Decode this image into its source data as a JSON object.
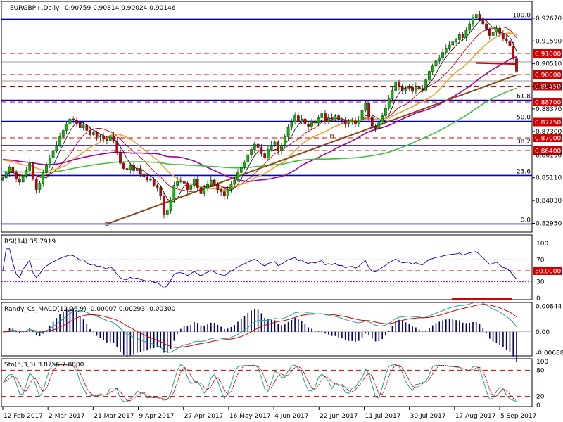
{
  "colors": {
    "bull": "#00c000",
    "bear": "#d00000",
    "blue": "#0000c8",
    "red": "#d00000",
    "ma_fast": "#000000",
    "ma_20": "#d00000",
    "ma_50": "#f0a030",
    "ma_100": "#a000a0",
    "ma_200": "#40c040",
    "trend": "#8b4513",
    "rsi": "#0000c8",
    "macd_sig": "#d00000",
    "macd_main": "#20a0a0",
    "sto_main": "#20a0a0",
    "sto_sig": "#d00000",
    "grid": "#808080"
  },
  "chart_data": [
    {
      "type": "candlestick",
      "title": "EURGBP+,Daily",
      "ohlc_text": "0.90759 0.90814 0.90024 0.90146",
      "ylim": [
        0.826,
        0.934
      ],
      "ticks": [
        "0.92670",
        "0.91590",
        "0.90510",
        "0.89450",
        "0.88370",
        "0.87300",
        "0.86190",
        "0.85110",
        "0.84030",
        "0.82950"
      ],
      "tick_values": [
        0.9267,
        0.9159,
        0.9051,
        0.8945,
        0.8837,
        0.873,
        0.8619,
        0.8511,
        0.8403,
        0.8295
      ],
      "highlighted_levels": [
        {
          "value": 0.91,
          "label": "0.91000"
        },
        {
          "value": 0.9,
          "label": "0.90000"
        },
        {
          "value": 0.8945,
          "label": "0.89450"
        },
        {
          "value": 0.887,
          "label": "0.88700"
        },
        {
          "value": 0.8775,
          "label": "0.87750"
        },
        {
          "value": 0.87,
          "label": "0.87000"
        },
        {
          "value": 0.864,
          "label": "0.86400"
        }
      ],
      "fib_levels": [
        {
          "label": "100.0",
          "value": 0.9262
        },
        {
          "label": "61.8",
          "value": 0.8878
        },
        {
          "label": "50.0",
          "value": 0.8778
        },
        {
          "label": "38.2",
          "value": 0.8663
        },
        {
          "label": "23.6",
          "value": 0.8522
        },
        {
          "label": "0.0",
          "value": 0.8292
        }
      ],
      "close": [
        0.851,
        0.8535,
        0.856,
        0.8535,
        0.8505,
        0.849,
        0.852,
        0.8545,
        0.858,
        0.8505,
        0.8455,
        0.8485,
        0.8535,
        0.857,
        0.8605,
        0.864,
        0.8665,
        0.8705,
        0.8735,
        0.8765,
        0.879,
        0.8785,
        0.877,
        0.8748,
        0.876,
        0.8735,
        0.8715,
        0.8725,
        0.8705,
        0.871,
        0.8695,
        0.8685,
        0.871,
        0.8685,
        0.863,
        0.858,
        0.8555,
        0.855,
        0.857,
        0.8545,
        0.8555,
        0.853,
        0.8515,
        0.85,
        0.8505,
        0.8475,
        0.8465,
        0.8425,
        0.8335,
        0.8355,
        0.8405,
        0.8475,
        0.8495,
        0.8495,
        0.8485,
        0.8455,
        0.8475,
        0.8505,
        0.8465,
        0.8435,
        0.846,
        0.848,
        0.85,
        0.848,
        0.8455,
        0.8445,
        0.8425,
        0.8455,
        0.848,
        0.85,
        0.8535,
        0.856,
        0.8585,
        0.862,
        0.8645,
        0.867,
        0.8655,
        0.8625,
        0.8605,
        0.8645,
        0.8665,
        0.868,
        0.864,
        0.8665,
        0.8705,
        0.875,
        0.8775,
        0.8805,
        0.8775,
        0.879,
        0.8765,
        0.8755,
        0.878,
        0.877,
        0.8795,
        0.8815,
        0.8775,
        0.8795,
        0.8785,
        0.8805,
        0.8785,
        0.8785,
        0.8765,
        0.8775,
        0.878,
        0.8765,
        0.8785,
        0.883,
        0.8865,
        0.88,
        0.8755,
        0.8745,
        0.8775,
        0.8805,
        0.884,
        0.8885,
        0.8925,
        0.8965,
        0.8945,
        0.8925,
        0.8935,
        0.894,
        0.892,
        0.8945,
        0.893,
        0.8925,
        0.8975,
        0.9015,
        0.904,
        0.9065,
        0.908,
        0.9105,
        0.9125,
        0.914,
        0.9155,
        0.9165,
        0.919,
        0.9175,
        0.921,
        0.924,
        0.927,
        0.9285,
        0.9265,
        0.924,
        0.9215,
        0.9185,
        0.92,
        0.922,
        0.9195,
        0.917,
        0.916,
        0.9135,
        0.9075,
        0.9015
      ]
    },
    {
      "type": "line",
      "title": "RSI(14) 35.7919",
      "ylim": [
        0,
        100
      ],
      "ticks": [
        "100",
        "70",
        "50.0000",
        "30",
        "0"
      ],
      "tick_values": [
        100,
        70,
        50,
        30,
        0
      ],
      "levels": [
        70,
        50,
        30
      ]
    },
    {
      "type": "bar",
      "title": "Randy_Cs_MACD(12,26,9) -0.00007 0.00293 -0.00300",
      "ylim": [
        -0.0075,
        0.0093
      ],
      "ticks": [
        "0.00844",
        "0.00",
        "-0.00688"
      ],
      "tick_values": [
        0.00844,
        0,
        -0.00688
      ]
    },
    {
      "type": "line",
      "title": "Sto(5,3,3) 3.8756 7.8800",
      "ylim": [
        0,
        100
      ],
      "ticks": [
        "100",
        "80",
        "20",
        "0"
      ],
      "tick_values": [
        100,
        80,
        20,
        0
      ],
      "levels": [
        80,
        20
      ]
    }
  ],
  "x_labels": [
    "12 Feb 2017",
    "2 Mar 2017",
    "21 Mar 2017",
    "9 Apr 2017",
    "27 Apr 2017",
    "16 May 2017",
    "4 Jun 2017",
    "22 Jun 2017",
    "11 Jul 2017",
    "30 Jul 2017",
    "17 Aug 2017",
    "5 Sep 2017"
  ]
}
